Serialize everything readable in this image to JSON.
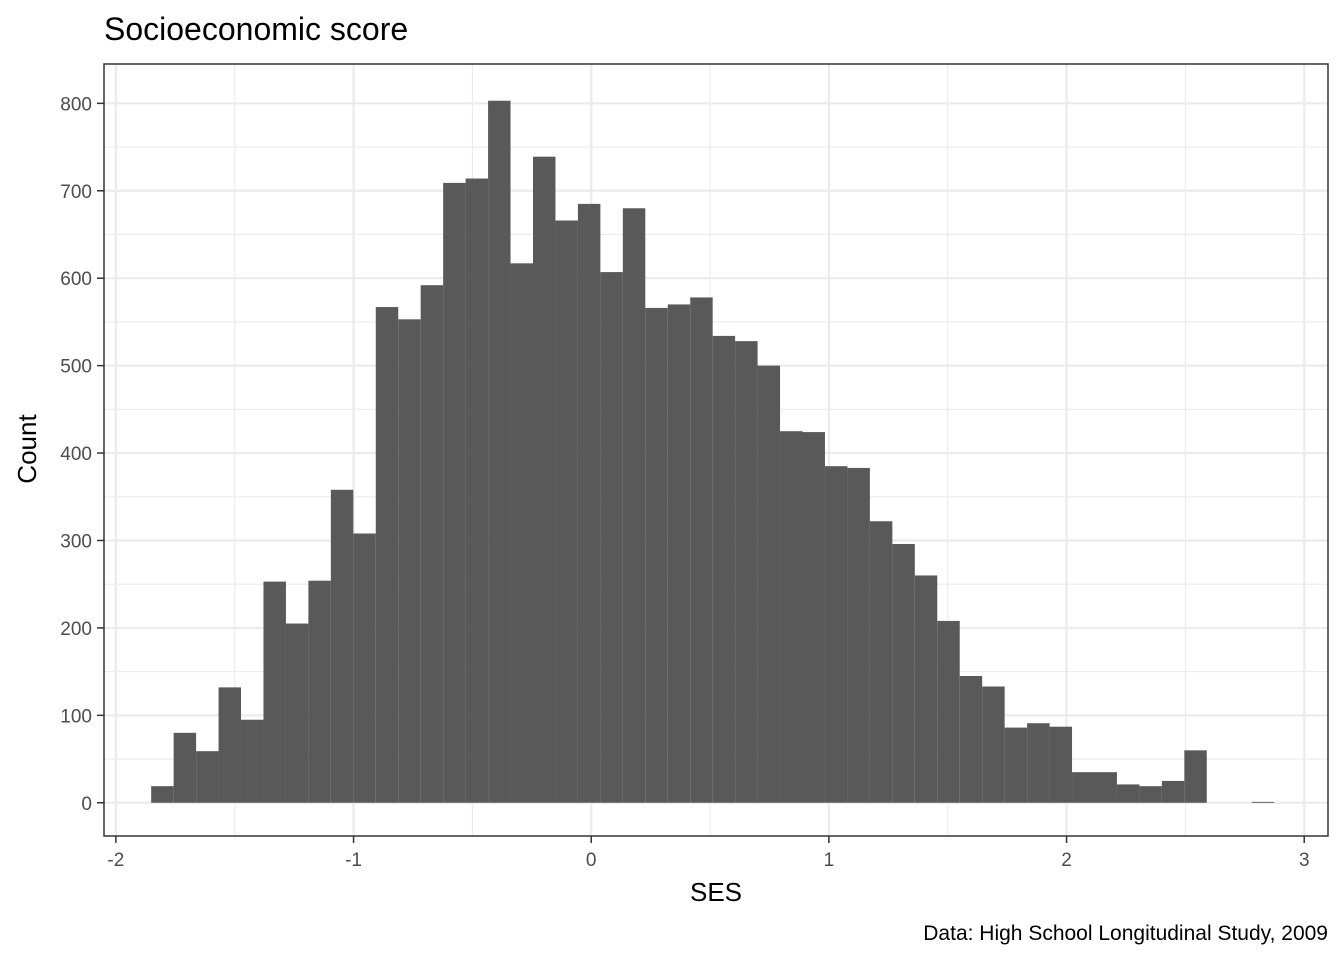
{
  "chart_data": {
    "type": "bar",
    "title": "Socioeconomic score",
    "xlabel": "SES",
    "ylabel": "Count",
    "caption": "Data: High School Longitudinal Study, 2009",
    "xlim": [
      -2.05,
      3.1
    ],
    "ylim": [
      -38,
      845
    ],
    "x_ticks": [
      -2,
      -1,
      0,
      1,
      2,
      3
    ],
    "x_tick_labels": [
      "-2",
      "-1",
      "0",
      "1",
      "2",
      "3"
    ],
    "y_ticks": [
      0,
      100,
      200,
      300,
      400,
      500,
      600,
      700,
      800
    ],
    "y_tick_labels": [
      "0",
      "100",
      "200",
      "300",
      "400",
      "500",
      "600",
      "700",
      "800"
    ],
    "grid": true,
    "bar_color": "#595959",
    "bins": {
      "x_start": [
        -1.8515,
        -1.757,
        -1.6625,
        -1.568,
        -1.4735,
        -1.379,
        -1.2845,
        -1.19,
        -1.0955,
        -1.001,
        -0.9065,
        -0.812,
        -0.7175,
        -0.623,
        -0.5285,
        -0.434,
        -0.3395,
        -0.245,
        -0.1505,
        -0.056,
        0.0385,
        0.133,
        0.2275,
        0.322,
        0.4165,
        0.511,
        0.6055,
        0.7,
        0.7945,
        0.889,
        0.9835,
        1.078,
        1.1725,
        1.267,
        1.3615,
        1.456,
        1.5505,
        1.645,
        1.7395,
        1.834,
        1.9285,
        2.023,
        2.1175,
        2.212,
        2.3065,
        2.401,
        2.4955,
        2.59,
        2.6845,
        2.779
      ],
      "x_end": [
        -1.757,
        -1.6625,
        -1.568,
        -1.4735,
        -1.379,
        -1.2845,
        -1.19,
        -1.0955,
        -1.001,
        -0.9065,
        -0.812,
        -0.7175,
        -0.623,
        -0.5285,
        -0.434,
        -0.3395,
        -0.245,
        -0.1505,
        -0.056,
        0.0385,
        0.133,
        0.2275,
        0.322,
        0.4165,
        0.511,
        0.6055,
        0.7,
        0.7945,
        0.889,
        0.9835,
        1.078,
        1.1725,
        1.267,
        1.3615,
        1.456,
        1.5505,
        1.645,
        1.7395,
        1.834,
        1.9285,
        2.023,
        2.1175,
        2.212,
        2.3065,
        2.401,
        2.4955,
        2.59,
        2.6845,
        2.779,
        2.8735
      ],
      "counts": [
        19,
        80,
        59,
        132,
        95,
        253,
        205,
        254,
        358,
        308,
        567,
        553,
        592,
        709,
        714,
        803,
        617,
        739,
        666,
        685,
        607,
        680,
        566,
        570,
        578,
        534,
        528,
        500,
        425,
        424,
        385,
        383,
        322,
        296,
        260,
        208,
        145,
        133,
        86,
        91,
        87,
        35,
        35,
        21,
        19,
        25,
        60,
        0,
        0,
        1
      ]
    }
  }
}
